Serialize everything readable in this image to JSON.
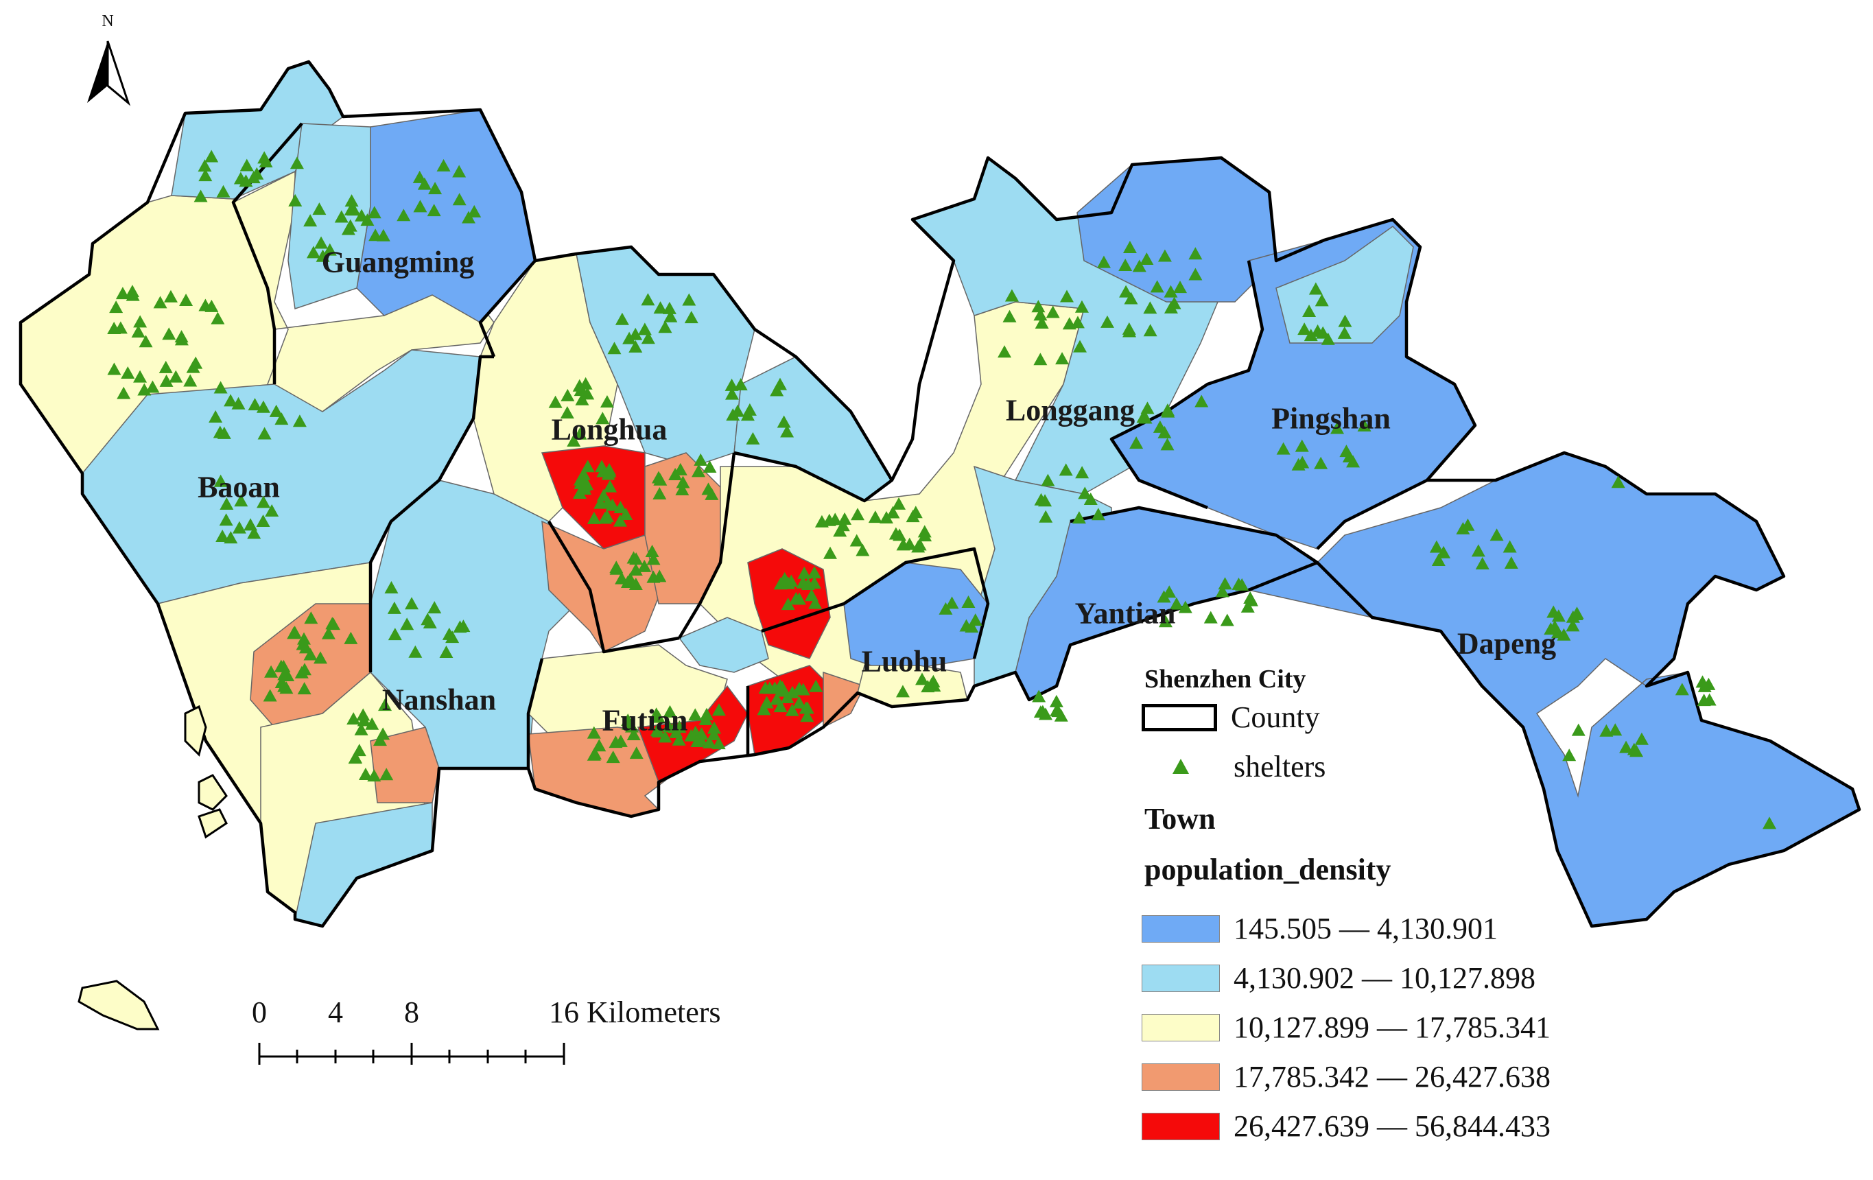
{
  "north_arrow": {
    "label": "N",
    "icon": "north-arrow-icon"
  },
  "districts": [
    {
      "name": "Guangming"
    },
    {
      "name": "Baoan"
    },
    {
      "name": "Longhua"
    },
    {
      "name": "Nanshan"
    },
    {
      "name": "Futian"
    },
    {
      "name": "Luohu"
    },
    {
      "name": "Longgang"
    },
    {
      "name": "Pingshan"
    },
    {
      "name": "Yantian"
    },
    {
      "name": "Dapeng"
    }
  ],
  "scale_bar": {
    "labels": [
      "0",
      "4",
      "8",
      "16 Kilometers"
    ],
    "units": "Kilometers"
  },
  "legend": {
    "title": "Shenzhen City",
    "county_label": "County",
    "shelters_label": "shelters",
    "shelter_color": "#3a9a1a",
    "layer_heading_line1": "Town",
    "layer_heading_line2": "population_density",
    "classes": [
      {
        "label": "145.505 — 4,130.901",
        "color": "#6faaf5"
      },
      {
        "label": "4,130.902 — 10,127.898",
        "color": "#9ddcf2"
      },
      {
        "label": "10,127.899 — 17,785.341",
        "color": "#fdfdc8"
      },
      {
        "label": "17,785.342 — 26,427.638",
        "color": "#f19a70"
      },
      {
        "label": "26,427.639 — 56,844.433",
        "color": "#f50a0a"
      }
    ]
  }
}
